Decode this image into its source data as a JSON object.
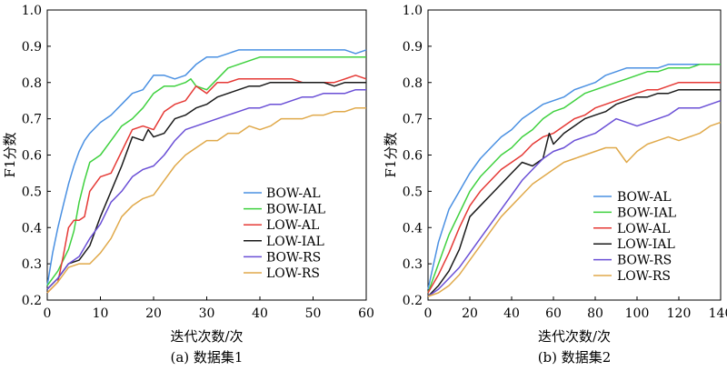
{
  "chart_data": [
    {
      "type": "line",
      "caption": "(a) 数据集1",
      "xlabel": "迭代次数/次",
      "ylabel": "F1分数",
      "xlim": [
        0,
        60
      ],
      "ylim": [
        0.2,
        1.0
      ],
      "xticks": [
        0,
        10,
        20,
        30,
        40,
        50,
        60
      ],
      "yticks": [
        0.2,
        0.3,
        0.4,
        0.5,
        0.6,
        0.7,
        0.8,
        0.9,
        1.0
      ],
      "grid": false,
      "legend_position": "lower-right",
      "series": [
        {
          "name": "BOW-AL",
          "color": "#4a90e2",
          "x": [
            0,
            1,
            2,
            3,
            4,
            5,
            6,
            7,
            8,
            10,
            12,
            14,
            16,
            18,
            20,
            22,
            24,
            26,
            28,
            30,
            32,
            34,
            36,
            38,
            40,
            42,
            44,
            46,
            48,
            50,
            52,
            54,
            56,
            58,
            60
          ],
          "y": [
            0.24,
            0.33,
            0.4,
            0.46,
            0.52,
            0.57,
            0.61,
            0.64,
            0.66,
            0.69,
            0.71,
            0.74,
            0.77,
            0.78,
            0.82,
            0.82,
            0.81,
            0.82,
            0.85,
            0.87,
            0.87,
            0.88,
            0.89,
            0.89,
            0.89,
            0.89,
            0.89,
            0.89,
            0.89,
            0.89,
            0.89,
            0.89,
            0.89,
            0.88,
            0.89
          ]
        },
        {
          "name": "BOW-IAL",
          "color": "#3fd13f",
          "x": [
            0,
            2,
            4,
            5,
            6,
            7,
            8,
            10,
            12,
            14,
            16,
            18,
            20,
            22,
            24,
            26,
            27,
            28,
            30,
            32,
            34,
            36,
            38,
            40,
            42,
            44,
            46,
            48,
            50,
            52,
            54,
            56,
            58,
            60
          ],
          "y": [
            0.24,
            0.28,
            0.34,
            0.39,
            0.47,
            0.53,
            0.58,
            0.6,
            0.64,
            0.68,
            0.7,
            0.73,
            0.77,
            0.79,
            0.79,
            0.8,
            0.81,
            0.79,
            0.78,
            0.81,
            0.84,
            0.85,
            0.86,
            0.87,
            0.87,
            0.87,
            0.87,
            0.87,
            0.87,
            0.87,
            0.87,
            0.87,
            0.87,
            0.87
          ]
        },
        {
          "name": "LOW-AL",
          "color": "#e53935",
          "x": [
            0,
            2,
            3,
            4,
            5,
            6,
            7,
            8,
            10,
            12,
            14,
            16,
            18,
            20,
            22,
            24,
            26,
            28,
            30,
            32,
            34,
            36,
            38,
            40,
            42,
            44,
            46,
            48,
            50,
            52,
            54,
            56,
            58,
            60
          ],
          "y": [
            0.22,
            0.25,
            0.32,
            0.4,
            0.42,
            0.42,
            0.43,
            0.5,
            0.54,
            0.55,
            0.61,
            0.67,
            0.68,
            0.67,
            0.72,
            0.74,
            0.75,
            0.79,
            0.77,
            0.8,
            0.8,
            0.81,
            0.81,
            0.81,
            0.81,
            0.81,
            0.81,
            0.8,
            0.8,
            0.8,
            0.8,
            0.81,
            0.82,
            0.81
          ]
        },
        {
          "name": "LOW-IAL",
          "color": "#1a1a1a",
          "x": [
            0,
            2,
            4,
            6,
            8,
            10,
            12,
            14,
            16,
            18,
            19,
            20,
            22,
            24,
            26,
            28,
            30,
            32,
            34,
            36,
            38,
            40,
            42,
            44,
            46,
            48,
            50,
            52,
            54,
            56,
            58,
            60
          ],
          "y": [
            0.23,
            0.26,
            0.3,
            0.31,
            0.35,
            0.43,
            0.5,
            0.57,
            0.65,
            0.64,
            0.67,
            0.65,
            0.66,
            0.7,
            0.71,
            0.73,
            0.74,
            0.76,
            0.77,
            0.78,
            0.79,
            0.79,
            0.8,
            0.8,
            0.8,
            0.8,
            0.8,
            0.8,
            0.79,
            0.8,
            0.8,
            0.8
          ]
        },
        {
          "name": "BOW-RS",
          "color": "#6a4fd6",
          "x": [
            0,
            2,
            4,
            6,
            8,
            10,
            12,
            14,
            16,
            18,
            20,
            22,
            24,
            26,
            28,
            30,
            32,
            34,
            36,
            38,
            40,
            42,
            44,
            46,
            48,
            50,
            52,
            54,
            56,
            58,
            60
          ],
          "y": [
            0.23,
            0.26,
            0.3,
            0.32,
            0.37,
            0.41,
            0.47,
            0.5,
            0.54,
            0.56,
            0.57,
            0.6,
            0.64,
            0.67,
            0.68,
            0.69,
            0.7,
            0.71,
            0.72,
            0.73,
            0.73,
            0.74,
            0.74,
            0.75,
            0.76,
            0.76,
            0.77,
            0.77,
            0.77,
            0.78,
            0.78
          ]
        },
        {
          "name": "LOW-RS",
          "color": "#e0a94a",
          "x": [
            0,
            2,
            4,
            6,
            8,
            10,
            12,
            14,
            16,
            18,
            20,
            22,
            24,
            26,
            28,
            30,
            32,
            34,
            36,
            38,
            40,
            42,
            44,
            46,
            48,
            50,
            52,
            54,
            56,
            58,
            60
          ],
          "y": [
            0.22,
            0.25,
            0.29,
            0.3,
            0.3,
            0.33,
            0.37,
            0.43,
            0.46,
            0.48,
            0.49,
            0.53,
            0.57,
            0.6,
            0.62,
            0.64,
            0.64,
            0.66,
            0.66,
            0.68,
            0.67,
            0.68,
            0.7,
            0.7,
            0.7,
            0.71,
            0.71,
            0.72,
            0.72,
            0.73,
            0.73
          ]
        }
      ]
    },
    {
      "type": "line",
      "caption": "(b) 数据集2",
      "xlabel": "迭代次数/次",
      "ylabel": "F1分数",
      "xlim": [
        0,
        140
      ],
      "ylim": [
        0.2,
        1.0
      ],
      "xticks": [
        0,
        20,
        40,
        60,
        80,
        100,
        120,
        140
      ],
      "yticks": [
        0.2,
        0.3,
        0.4,
        0.5,
        0.6,
        0.7,
        0.8,
        0.9,
        1.0
      ],
      "grid": false,
      "legend_position": "lower-right",
      "series": [
        {
          "name": "BOW-AL",
          "color": "#4a90e2",
          "x": [
            0,
            5,
            10,
            15,
            20,
            25,
            30,
            35,
            40,
            45,
            50,
            55,
            60,
            65,
            70,
            75,
            80,
            85,
            90,
            95,
            100,
            105,
            110,
            115,
            120,
            125,
            130,
            135,
            140
          ],
          "y": [
            0.23,
            0.36,
            0.45,
            0.5,
            0.55,
            0.59,
            0.62,
            0.65,
            0.67,
            0.7,
            0.72,
            0.74,
            0.75,
            0.76,
            0.78,
            0.79,
            0.8,
            0.82,
            0.83,
            0.84,
            0.84,
            0.84,
            0.84,
            0.85,
            0.85,
            0.85,
            0.85,
            0.85,
            0.85
          ]
        },
        {
          "name": "BOW-IAL",
          "color": "#3fd13f",
          "x": [
            0,
            5,
            10,
            15,
            20,
            25,
            30,
            35,
            40,
            45,
            50,
            55,
            60,
            65,
            70,
            75,
            80,
            85,
            90,
            95,
            100,
            105,
            110,
            115,
            120,
            125,
            130,
            135,
            140
          ],
          "y": [
            0.22,
            0.3,
            0.38,
            0.44,
            0.5,
            0.54,
            0.57,
            0.6,
            0.62,
            0.65,
            0.67,
            0.7,
            0.72,
            0.73,
            0.75,
            0.77,
            0.78,
            0.79,
            0.8,
            0.81,
            0.82,
            0.83,
            0.83,
            0.84,
            0.84,
            0.84,
            0.85,
            0.85,
            0.85
          ]
        },
        {
          "name": "LOW-AL",
          "color": "#e53935",
          "x": [
            0,
            5,
            10,
            15,
            20,
            25,
            30,
            35,
            40,
            45,
            50,
            55,
            60,
            65,
            70,
            75,
            80,
            85,
            90,
            95,
            100,
            105,
            110,
            115,
            120,
            125,
            130,
            135,
            140
          ],
          "y": [
            0.22,
            0.27,
            0.33,
            0.4,
            0.46,
            0.5,
            0.53,
            0.56,
            0.58,
            0.6,
            0.63,
            0.65,
            0.66,
            0.68,
            0.7,
            0.71,
            0.73,
            0.74,
            0.75,
            0.76,
            0.77,
            0.78,
            0.78,
            0.79,
            0.8,
            0.8,
            0.8,
            0.8,
            0.8
          ]
        },
        {
          "name": "LOW-IAL",
          "color": "#1a1a1a",
          "x": [
            0,
            5,
            10,
            15,
            20,
            25,
            30,
            35,
            40,
            45,
            50,
            55,
            58,
            60,
            65,
            70,
            75,
            80,
            85,
            90,
            95,
            100,
            105,
            110,
            115,
            120,
            125,
            130,
            135,
            140
          ],
          "y": [
            0.21,
            0.24,
            0.28,
            0.34,
            0.43,
            0.46,
            0.49,
            0.52,
            0.55,
            0.58,
            0.57,
            0.59,
            0.66,
            0.63,
            0.66,
            0.68,
            0.7,
            0.71,
            0.72,
            0.74,
            0.75,
            0.76,
            0.76,
            0.77,
            0.77,
            0.78,
            0.78,
            0.78,
            0.78,
            0.78
          ]
        },
        {
          "name": "BOW-RS",
          "color": "#6a4fd6",
          "x": [
            0,
            5,
            10,
            15,
            20,
            25,
            30,
            35,
            40,
            45,
            50,
            55,
            60,
            65,
            70,
            75,
            80,
            85,
            90,
            95,
            100,
            105,
            110,
            115,
            120,
            125,
            130,
            135,
            140
          ],
          "y": [
            0.21,
            0.23,
            0.26,
            0.29,
            0.33,
            0.37,
            0.41,
            0.45,
            0.49,
            0.53,
            0.56,
            0.59,
            0.61,
            0.62,
            0.64,
            0.65,
            0.66,
            0.68,
            0.7,
            0.69,
            0.68,
            0.69,
            0.7,
            0.71,
            0.73,
            0.73,
            0.73,
            0.74,
            0.75
          ]
        },
        {
          "name": "LOW-RS",
          "color": "#e0a94a",
          "x": [
            0,
            5,
            10,
            15,
            20,
            25,
            30,
            35,
            40,
            45,
            50,
            55,
            60,
            65,
            70,
            75,
            80,
            85,
            90,
            95,
            100,
            105,
            110,
            115,
            120,
            125,
            130,
            135,
            140
          ],
          "y": [
            0.21,
            0.22,
            0.24,
            0.27,
            0.31,
            0.35,
            0.39,
            0.43,
            0.46,
            0.49,
            0.52,
            0.54,
            0.56,
            0.58,
            0.59,
            0.6,
            0.61,
            0.62,
            0.62,
            0.58,
            0.61,
            0.63,
            0.64,
            0.65,
            0.64,
            0.65,
            0.66,
            0.68,
            0.69
          ]
        }
      ]
    }
  ]
}
